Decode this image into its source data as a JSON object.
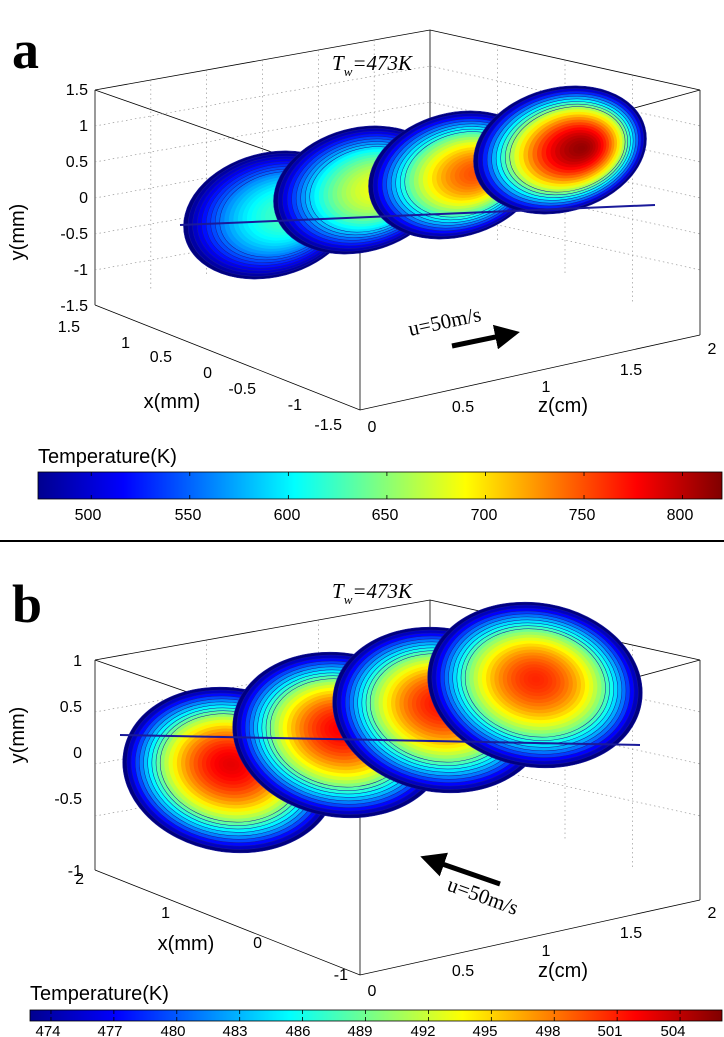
{
  "chart_data": [
    {
      "type": "contour3d",
      "panel_label": "a",
      "annotation_tw": "T",
      "annotation_tw_sub": "w",
      "annotation_tw_value": "=473K",
      "flow_label": "u=50m/s",
      "flow_direction": "+z",
      "xlabel": "x(mm)",
      "ylabel": "y(mm)",
      "zlabel": "z(cm)",
      "x_ticks": [
        "1.5",
        "1",
        "0.5",
        "0",
        "-0.5",
        "-1",
        "-1.5"
      ],
      "y_ticks": [
        "1.5",
        "1",
        "0.5",
        "0",
        "-0.5",
        "-1",
        "-1.5"
      ],
      "z_ticks": [
        "0",
        "0.5",
        "1",
        "1.5",
        "2"
      ],
      "xlim": [
        -1.5,
        1.5
      ],
      "ylim": [
        -1.5,
        1.5
      ],
      "zlim": [
        0,
        2
      ],
      "grid": true,
      "slice_positions_cm": [
        0.5,
        1.0,
        1.5,
        2.0
      ],
      "slice_peak_levels": [
        0.45,
        0.62,
        0.8,
        0.98
      ],
      "colorbar_label": "Temperature(K)",
      "colorbar_ticks": [
        "500",
        "550",
        "600",
        "650",
        "700",
        "750",
        "800"
      ],
      "colorbar_range": [
        473,
        820
      ]
    },
    {
      "type": "contour3d",
      "panel_label": "b",
      "annotation_tw": "T",
      "annotation_tw_sub": "w",
      "annotation_tw_value": "=473K",
      "flow_label": "u=50m/s",
      "flow_direction": "-z",
      "xlabel": "x(mm)",
      "ylabel": "y(mm)",
      "zlabel": "z(cm)",
      "x_ticks": [
        "2",
        "1",
        "0",
        "-1"
      ],
      "y_ticks": [
        "1",
        "0.5",
        "0",
        "-0.5",
        "-1"
      ],
      "z_ticks": [
        "0",
        "0.5",
        "1",
        "1.5",
        "2"
      ],
      "xlim": [
        -1,
        2
      ],
      "ylim": [
        -1,
        1
      ],
      "zlim": [
        0,
        2
      ],
      "grid": true,
      "slice_positions_cm": [
        0.5,
        1.0,
        1.5,
        2.0
      ],
      "slice_peak_levels": [
        0.9,
        0.88,
        0.86,
        0.84
      ],
      "colorbar_label": "Temperature(K)",
      "colorbar_ticks": [
        "474",
        "477",
        "480",
        "483",
        "486",
        "489",
        "492",
        "495",
        "498",
        "501",
        "504"
      ],
      "colorbar_range": [
        473,
        506
      ]
    }
  ]
}
